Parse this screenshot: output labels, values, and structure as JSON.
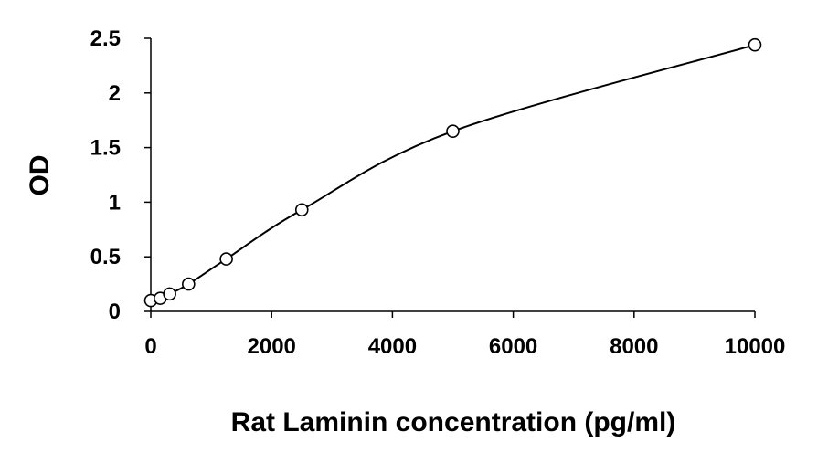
{
  "chart_data": {
    "type": "scatter",
    "title": "",
    "xlabel": "Rat Laminin concentration (pg/ml)",
    "ylabel": "OD",
    "xlim": [
      0,
      10000
    ],
    "ylim": [
      0,
      2.5
    ],
    "x_ticks": [
      0,
      2000,
      4000,
      6000,
      8000,
      10000
    ],
    "x_tick_labels": [
      "0",
      "2000",
      "4000",
      "6000",
      "8000",
      "10000"
    ],
    "y_ticks": [
      0,
      0.5,
      1,
      1.5,
      2,
      2.5
    ],
    "y_tick_labels": [
      "0",
      "0.5",
      "1",
      "1.5",
      "2",
      "2.5"
    ],
    "grid": false,
    "legend": "none",
    "marker": "open-circle",
    "fit_curve": "smooth",
    "series": [
      {
        "x": [
          0,
          156,
          312,
          625,
          1250,
          2500,
          5000,
          10000
        ],
        "y": [
          0.1,
          0.12,
          0.16,
          0.25,
          0.48,
          0.93,
          1.65,
          2.44
        ]
      }
    ],
    "colors": {
      "line": "#000000",
      "marker_stroke": "#000000",
      "marker_fill": "#ffffff"
    }
  }
}
